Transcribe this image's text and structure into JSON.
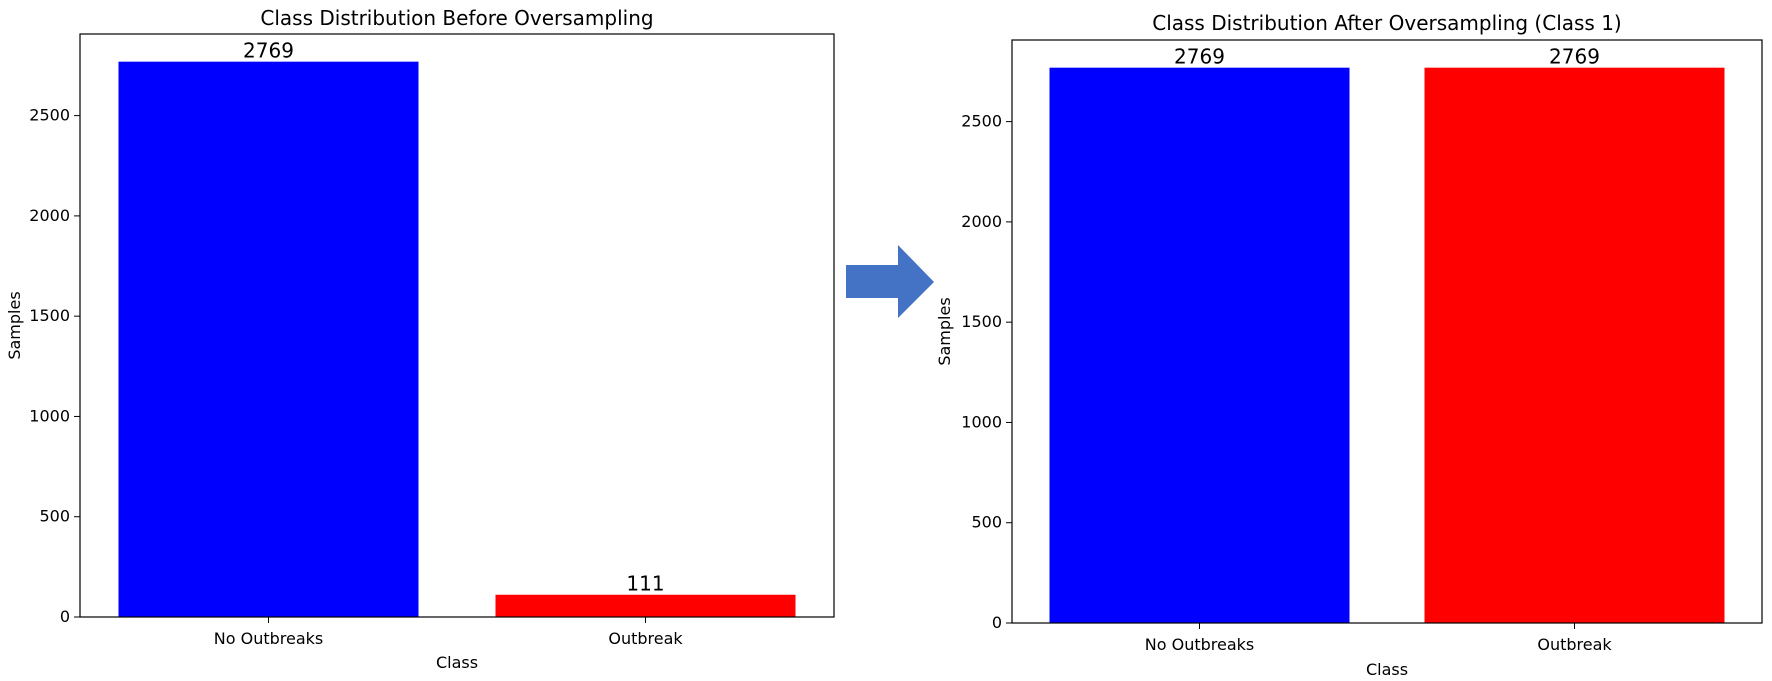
{
  "chart_data": [
    {
      "type": "bar",
      "title": "Class Distribution Before Oversampling",
      "xlabel": "Class",
      "ylabel": "Samples",
      "categories": [
        "No Outbreaks",
        "Outbreak"
      ],
      "values": [
        2769,
        111
      ],
      "value_labels": [
        "2769",
        "111"
      ],
      "bar_colors": [
        "#0000ff",
        "#ff0000"
      ],
      "ylim": [
        0,
        2907
      ],
      "yticks": [
        0,
        500,
        1000,
        1500,
        2000,
        2500
      ],
      "ytick_labels": [
        "0",
        "500",
        "1000",
        "1500",
        "2000",
        "2500"
      ],
      "grid": false
    },
    {
      "type": "bar",
      "title": "Class Distribution After Oversampling (Class 1)",
      "xlabel": "Class",
      "ylabel": "Samples",
      "categories": [
        "No Outbreaks",
        "Outbreak"
      ],
      "values": [
        2769,
        2769
      ],
      "value_labels": [
        "2769",
        "2769"
      ],
      "bar_colors": [
        "#0000ff",
        "#ff0000"
      ],
      "ylim": [
        0,
        2907
      ],
      "yticks": [
        0,
        500,
        1000,
        1500,
        2000,
        2500
      ],
      "ytick_labels": [
        "0",
        "500",
        "1000",
        "1500",
        "2000",
        "2500"
      ],
      "grid": false
    }
  ],
  "arrow": {
    "icon": "right-arrow-icon",
    "color": "#4472c4"
  }
}
